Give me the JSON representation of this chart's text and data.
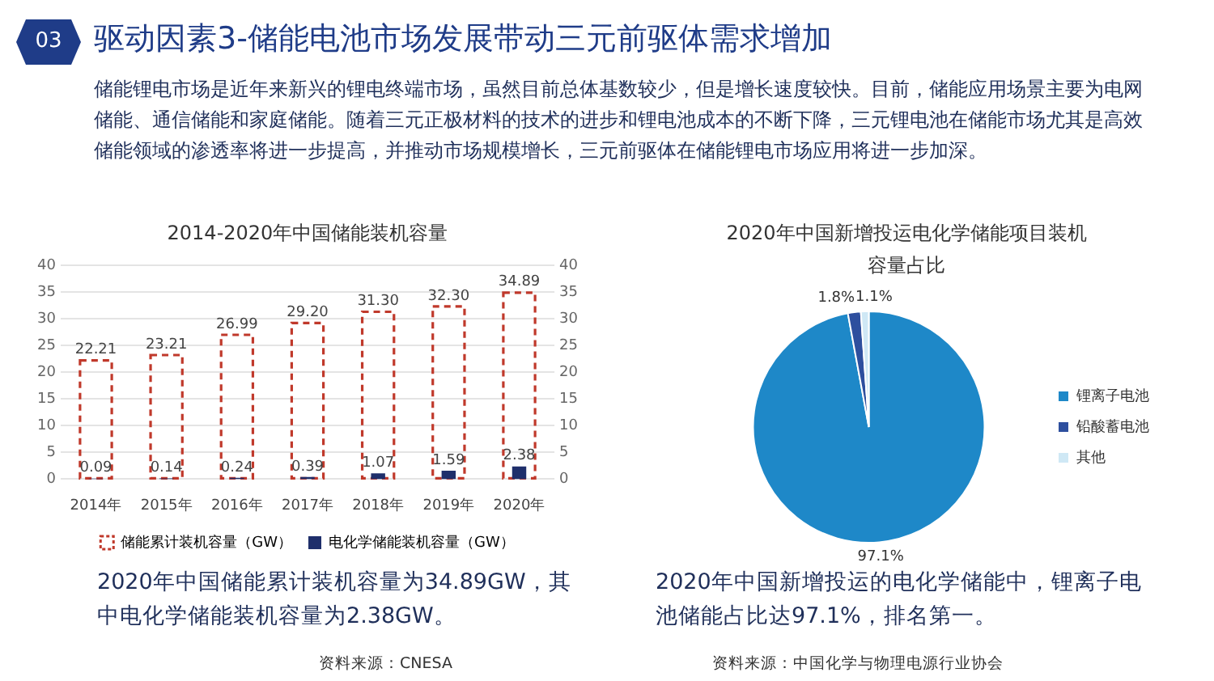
{
  "chart_data": [
    {
      "type": "bar",
      "title": "2014-2020年中国储能装机容量",
      "annotations": [
        "03",
        "驱动因素3-储能电池市场发展带动三元前驱体需求增加",
        "储能锂电市场是近年来新兴的锂电终端市场，虽然目前总体基数较少，但是增长速度较快。目前，储能应用场景主要为电网储能、通信储能和家庭储能。随着三元正极材料的技术的进步和锂电池成本的不断下降，三元锂电池在储能市场尤其是高效储能领域的渗透率将进一步提高，并推动市场规模增长，三元前驱体在储能锂电市场应用将进一步加深。",
        "2020年中国储能累计装机容量为34.89GW，其中电化学储能装机容量为2.38GW。",
        "资料来源：CNESA"
      ],
      "categories": [
        "2014年",
        "2015年",
        "2016年",
        "2017年",
        "2018年",
        "2019年",
        "2020年"
      ],
      "series": [
        {
          "name": "储能累计装机容量（GW）",
          "color": "#c0392b",
          "line_style": "dashed",
          "values": [
            22.21,
            23.21,
            26.99,
            29.2,
            31.3,
            32.3,
            34.89
          ],
          "value_labels": [
            "22.21",
            "23.21",
            "26.99",
            "29.20",
            "31.30",
            "32.30",
            "34.89"
          ]
        },
        {
          "name": "电化学储能装机容量（GW）",
          "color": "#1f2f6b",
          "axis": "y2",
          "values": [
            0.09,
            0.14,
            0.24,
            0.39,
            1.07,
            1.59,
            2.38
          ],
          "value_labels": [
            "0.09",
            "0.14",
            "0.24",
            "0.39",
            "1.07",
            "1.59",
            "2.38"
          ]
        }
      ],
      "ylim": [
        0,
        40
      ],
      "yticks": [
        0,
        5,
        10,
        15,
        20,
        25,
        30,
        35,
        40
      ],
      "y2lim": [
        0,
        40
      ],
      "y2ticks": [
        0,
        5,
        10,
        15,
        20,
        25,
        30,
        35,
        40
      ],
      "grid": "y",
      "legend": "bottom"
    },
    {
      "type": "pie",
      "title": "2020年中国新增投运电化学储能项目装机容量占比",
      "annotations": [
        "2020年中国新增投运的电化学储能中，锂离子电池储能占比达97.1%，排名第一。",
        "资料来源：中国化学与物理电源行业协会"
      ],
      "categories": [
        "锂离子电池",
        "铅酸蓄电池",
        "其他"
      ],
      "values": [
        97.1,
        1.8,
        1.1
      ],
      "colors": [
        "#1e88c8",
        "#2e4f9e",
        "#cfe8f5"
      ],
      "value_labels": [
        "97.1%",
        "1.8%",
        "1.1%"
      ],
      "legend": "right"
    }
  ]
}
